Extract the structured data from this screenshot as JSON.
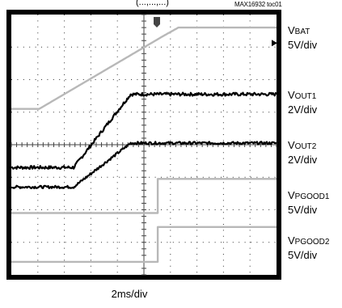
{
  "header": {
    "trunc_text": "(...,...,...)",
    "ref_label": "MAX16932 toc01"
  },
  "x_scale_label": "2ms/div",
  "channels": [
    {
      "base": "V",
      "sub": "BAT",
      "scale": "5V/div"
    },
    {
      "base": "V",
      "sub": "OUT1",
      "scale": "2V/div"
    },
    {
      "base": "V",
      "sub": "OUT2",
      "scale": "2V/div"
    },
    {
      "base": "V",
      "sub": "PGOOD1",
      "scale": "5V/div"
    },
    {
      "base": "V",
      "sub": "PGOOD2",
      "scale": "5V/div"
    }
  ],
  "chart_data": {
    "type": "line",
    "title": "",
    "xlabel": "2ms/div",
    "x_divisions": 10,
    "y_divisions": 8,
    "xlim": [
      0,
      10
    ],
    "ylim": [
      0,
      8
    ],
    "grid": true,
    "background": "#000000",
    "series": [
      {
        "name": "VBAT",
        "color": "#b8b8b8",
        "noise": 0.0,
        "x": [
          0,
          1.05,
          5.75,
          6.3,
          10
        ],
        "y": [
          5.1,
          5.1,
          7.35,
          7.6,
          7.6
        ]
      },
      {
        "name": "VOUT1",
        "color": "#000000",
        "noise": 0.05,
        "x": [
          0,
          2.35,
          4.5,
          10
        ],
        "y": [
          3.3,
          3.3,
          5.55,
          5.55
        ]
      },
      {
        "name": "VOUT2",
        "color": "#000000",
        "noise": 0.04,
        "x": [
          0,
          2.35,
          4.5,
          10
        ],
        "y": [
          2.7,
          2.7,
          4.05,
          4.05
        ]
      },
      {
        "name": "VPGOOD1",
        "color": "#b8b8b8",
        "noise": 0.0,
        "x": [
          0,
          5.52,
          5.52,
          10
        ],
        "y": [
          1.9,
          1.9,
          2.95,
          2.95
        ]
      },
      {
        "name": "VPGOOD2",
        "color": "#b8b8b8",
        "noise": 0.0,
        "x": [
          0,
          5.52,
          5.52,
          10
        ],
        "y": [
          0.4,
          0.4,
          1.47,
          1.47
        ]
      }
    ],
    "markers": [
      {
        "name": "trigger-marker",
        "x": 5.0,
        "position": "top",
        "glyph": "T"
      },
      {
        "name": "level-marker",
        "position": "right",
        "y": 7.0,
        "glyph": "◆"
      }
    ]
  }
}
